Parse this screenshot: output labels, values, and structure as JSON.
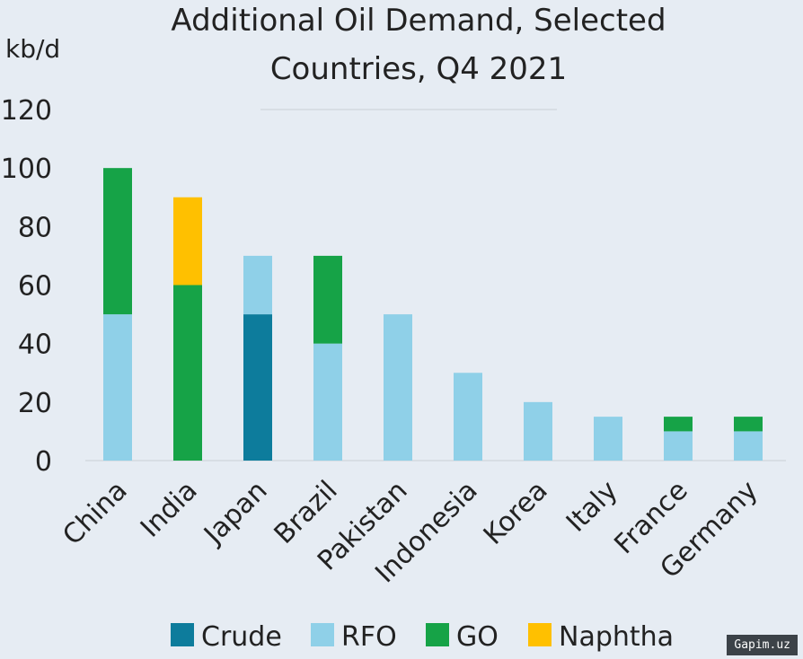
{
  "chart_data": {
    "type": "bar",
    "stacked": true,
    "title": [
      "Additional Oil Demand, Selected",
      "Countries, Q4 2021"
    ],
    "ylabel": "kb/d",
    "ylim": [
      0,
      120
    ],
    "yticks": [
      0,
      20,
      40,
      60,
      80,
      100,
      120
    ],
    "categories": [
      "China",
      "India",
      "Japan",
      "Brazil",
      "Pakistan",
      "Indonesia",
      "Korea",
      "Italy",
      "France",
      "Germany"
    ],
    "series": [
      {
        "name": "Crude",
        "color": "#0d7c9c",
        "values": [
          0,
          0,
          50,
          0,
          0,
          0,
          0,
          0,
          0,
          0
        ]
      },
      {
        "name": "RFO",
        "color": "#8fd0e8",
        "values": [
          50,
          0,
          20,
          40,
          50,
          30,
          20,
          15,
          10,
          10
        ]
      },
      {
        "name": "GO",
        "color": "#16a347",
        "values": [
          50,
          60,
          0,
          30,
          0,
          0,
          0,
          0,
          5,
          5
        ]
      },
      {
        "name": "Naphtha",
        "color": "#ffc000",
        "values": [
          0,
          30,
          0,
          0,
          0,
          0,
          0,
          0,
          0,
          0
        ]
      }
    ],
    "legend_position": "bottom"
  },
  "watermark": "Gapim.uz"
}
